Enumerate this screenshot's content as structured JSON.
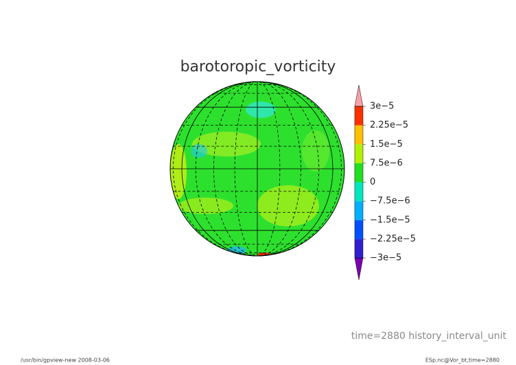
{
  "chart_data": {
    "type": "map",
    "title": "barotoropic_vorticity",
    "subtitle": "time=2880 history_interval_unit",
    "footer_left": "/usr/bin/gpview-new  2008-03-06",
    "footer_right": "ESp.nc@Vor_bt,time=2880",
    "colorbar": {
      "levels": [
        {
          "value": -3e-05,
          "label": "−3e−5"
        },
        {
          "value": -2.25e-05,
          "label": "−2.25e−5"
        },
        {
          "value": -1.5e-05,
          "label": "−1.5e−5"
        },
        {
          "value": -7.5e-06,
          "label": "−7.5e−6"
        },
        {
          "value": 0,
          "label": "0"
        },
        {
          "value": 7.5e-06,
          "label": "7.5e−6"
        },
        {
          "value": 1.5e-05,
          "label": "1.5e−5"
        },
        {
          "value": 2.25e-05,
          "label": "2.25e−5"
        },
        {
          "value": 3e-05,
          "label": "3e−5"
        }
      ],
      "colors": [
        "#7a00b0",
        "#3020d0",
        "#0050ff",
        "#00b0ff",
        "#00e8c0",
        "#20e020",
        "#b0f000",
        "#ffc000",
        "#ff3000",
        "#f8a0a8"
      ]
    }
  }
}
